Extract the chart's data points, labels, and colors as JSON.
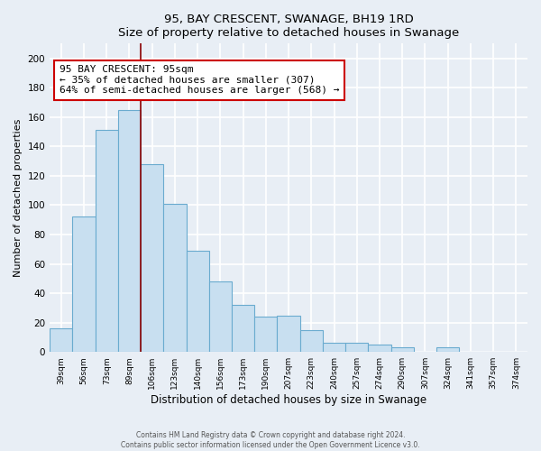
{
  "title": "95, BAY CRESCENT, SWANAGE, BH19 1RD",
  "subtitle": "Size of property relative to detached houses in Swanage",
  "xlabel": "Distribution of detached houses by size in Swanage",
  "ylabel": "Number of detached properties",
  "bar_labels": [
    "39sqm",
    "56sqm",
    "73sqm",
    "89sqm",
    "106sqm",
    "123sqm",
    "140sqm",
    "156sqm",
    "173sqm",
    "190sqm",
    "207sqm",
    "223sqm",
    "240sqm",
    "257sqm",
    "274sqm",
    "290sqm",
    "307sqm",
    "324sqm",
    "341sqm",
    "357sqm",
    "374sqm"
  ],
  "bar_values": [
    16,
    92,
    151,
    165,
    128,
    101,
    69,
    48,
    32,
    24,
    25,
    15,
    6,
    6,
    5,
    3,
    0,
    3,
    0,
    0,
    0
  ],
  "bar_color": "#c8dff0",
  "bar_edge_color": "#6aabcf",
  "property_line_color": "#8b0000",
  "annotation_text": "95 BAY CRESCENT: 95sqm\n← 35% of detached houses are smaller (307)\n64% of semi-detached houses are larger (568) →",
  "annotation_box_color": "white",
  "annotation_box_edge_color": "#cc0000",
  "ylim": [
    0,
    210
  ],
  "yticks": [
    0,
    20,
    40,
    60,
    80,
    100,
    120,
    140,
    160,
    180,
    200
  ],
  "footer_line1": "Contains HM Land Registry data © Crown copyright and database right 2024.",
  "footer_line2": "Contains public sector information licensed under the Open Government Licence v3.0.",
  "bg_color": "#e8eef5",
  "plot_bg_color": "#e8eef5",
  "grid_color": "white"
}
